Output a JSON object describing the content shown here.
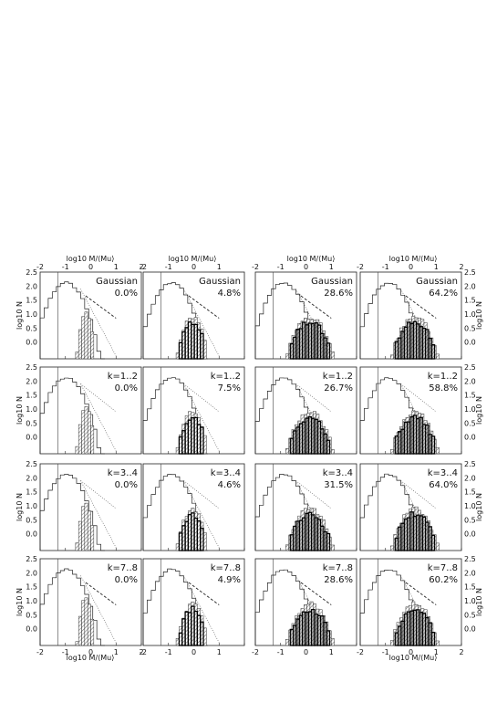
{
  "figure": {
    "x_axis_label": "log10 M/⟨Mu⟩",
    "y_axis_label": "log10 N"
  },
  "chart_data": {
    "type": "bar",
    "grid": false,
    "layout": "4 rows x 4 columns of histogram panels",
    "xlim": [
      -2,
      2
    ],
    "ylim": [
      -0.6,
      2.5
    ],
    "x_ticks": [
      "-2",
      "-1",
      "0",
      "1",
      "2"
    ],
    "x_ticks_left": [
      "-2",
      "-1",
      "0",
      "1"
    ],
    "y_ticks": [
      "2.5",
      "2.0",
      "1.5",
      "1.0",
      "0.5",
      "0.0"
    ],
    "label_position": "top-right of each panel",
    "rows": [
      {
        "model": "Gaussian",
        "fractions": [
          "0.0%",
          "4.8%",
          "28.6%",
          "64.2%"
        ]
      },
      {
        "model": "k=1..2",
        "fractions": [
          "0.0%",
          "7.5%",
          "26.7%",
          "58.8%"
        ]
      },
      {
        "model": "k=3..4",
        "fractions": [
          "0.0%",
          "4.6%",
          "31.5%",
          "64.0%"
        ]
      },
      {
        "model": "k=7..8",
        "fractions": [
          "0.0%",
          "4.9%",
          "28.6%",
          "60.2%"
        ]
      }
    ]
  }
}
